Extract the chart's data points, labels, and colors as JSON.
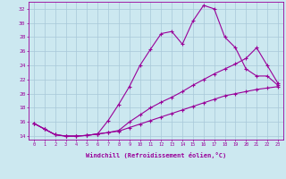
{
  "xlabel": "Windchill (Refroidissement éolien,°C)",
  "bg_color": "#cce8f0",
  "grid_color": "#a8c8d8",
  "line_color": "#990099",
  "xlim": [
    -0.5,
    23.5
  ],
  "ylim": [
    13.5,
    33.0
  ],
  "yticks": [
    14,
    16,
    18,
    20,
    22,
    24,
    26,
    28,
    30,
    32
  ],
  "xticks": [
    0,
    1,
    2,
    3,
    4,
    5,
    6,
    7,
    8,
    9,
    10,
    11,
    12,
    13,
    14,
    15,
    16,
    17,
    18,
    19,
    20,
    21,
    22,
    23
  ],
  "line1_x": [
    0,
    1,
    2,
    3,
    4,
    5,
    6,
    7,
    8,
    9,
    10,
    11,
    12,
    13,
    14,
    15,
    16,
    17,
    18,
    19,
    20,
    21,
    22,
    23
  ],
  "line1_y": [
    15.8,
    15.0,
    14.2,
    14.0,
    14.0,
    14.1,
    14.3,
    14.5,
    14.7,
    15.2,
    15.7,
    16.2,
    16.7,
    17.2,
    17.7,
    18.2,
    18.7,
    19.2,
    19.7,
    20.0,
    20.3,
    20.6,
    20.8,
    21.0
  ],
  "line2_x": [
    0,
    1,
    2,
    3,
    4,
    5,
    6,
    7,
    8,
    9,
    10,
    11,
    12,
    13,
    14,
    15,
    16,
    17,
    18,
    19,
    20,
    21,
    22,
    23
  ],
  "line2_y": [
    15.8,
    15.0,
    14.2,
    14.0,
    14.0,
    14.1,
    14.3,
    16.2,
    18.5,
    21.0,
    24.0,
    26.3,
    28.5,
    28.8,
    27.0,
    30.3,
    32.5,
    32.0,
    28.0,
    26.5,
    23.5,
    22.5,
    22.5,
    21.2
  ],
  "line3_x": [
    0,
    1,
    2,
    3,
    4,
    5,
    6,
    7,
    8,
    9,
    10,
    11,
    12,
    13,
    14,
    15,
    16,
    17,
    18,
    19,
    20,
    21,
    22,
    23
  ],
  "line3_y": [
    15.8,
    15.0,
    14.2,
    14.0,
    14.0,
    14.1,
    14.3,
    14.5,
    14.8,
    16.0,
    17.0,
    18.0,
    18.8,
    19.5,
    20.3,
    21.2,
    22.0,
    22.8,
    23.5,
    24.2,
    25.0,
    26.5,
    24.0,
    21.5
  ]
}
